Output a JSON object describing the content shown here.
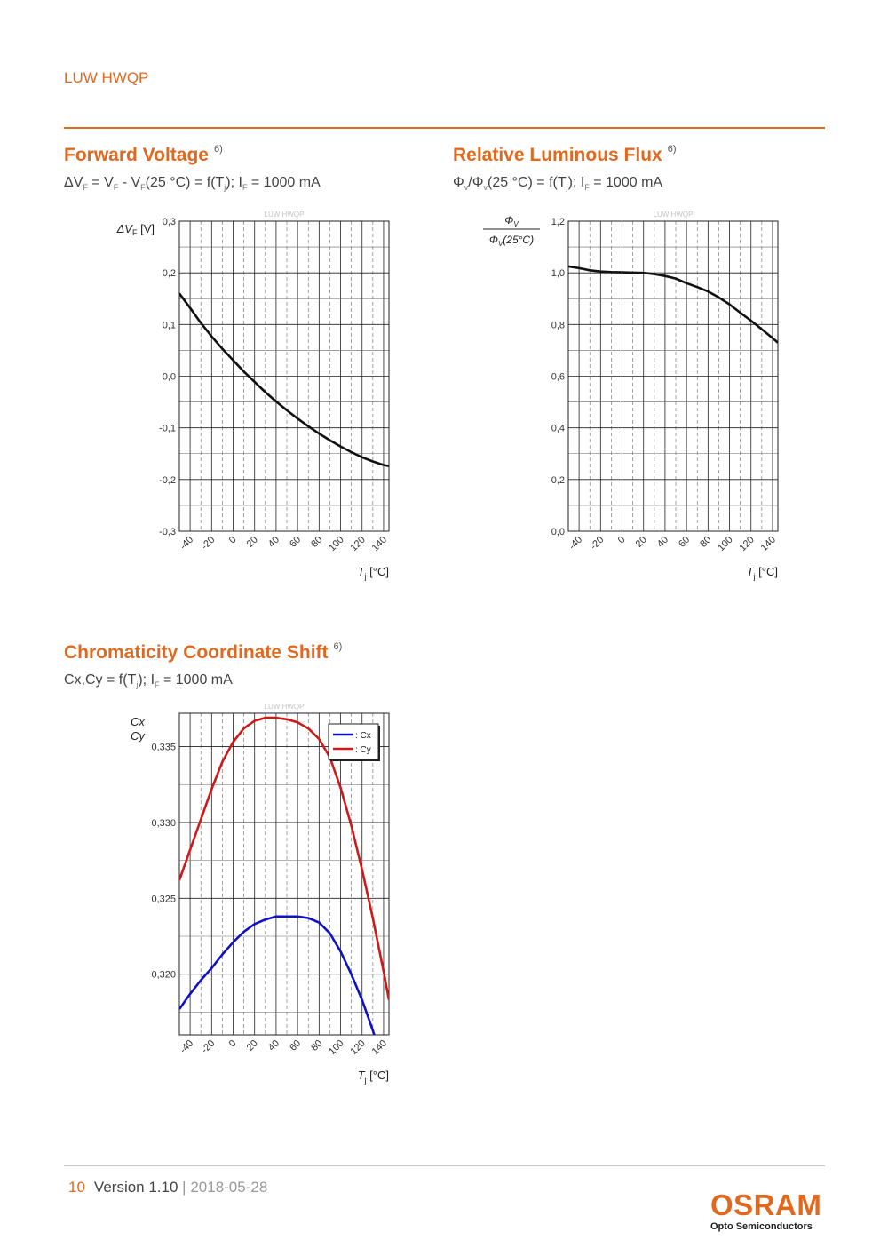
{
  "header": {
    "product": "LUW HWQP"
  },
  "sections": {
    "forward_voltage": {
      "title": "Forward Voltage",
      "note": "6)",
      "subtitle": {
        "dv": "ΔV",
        "f1": "F",
        "eq1": " = V",
        "f2": "F",
        "minus": " - V",
        "f3": "F",
        "mid": "(25 °C) = f(T",
        "j": "j",
        "semi": "); I",
        "f4": "F",
        "end": " = 1000 mA"
      }
    },
    "luminous_flux": {
      "title": "Relative Luminous Flux",
      "note": "6)",
      "subtitle": {
        "phi1": "Φ",
        "v1": "v",
        "slash": "/Φ",
        "v2": "v",
        "mid": "(25 °C) = f(T",
        "j": "j",
        "semi": "); I",
        "f": "F",
        "end": " = 1000 mA"
      }
    },
    "chromaticity": {
      "title": "Chromaticity Coordinate Shift",
      "note": "6)",
      "subtitle": {
        "start": "Cx,Cy = f(T",
        "j": "j",
        "semi": "); I",
        "f": "F",
        "end": " = 1000 mA"
      }
    }
  },
  "footer": {
    "page": "10",
    "version": "Version 1.10",
    "separator": "|",
    "date": "2018-05-28"
  },
  "logo": {
    "brand": "OSRAM",
    "tagline": "Opto Semiconductors"
  },
  "colors": {
    "accent": "#e0691f",
    "cx_series": "#1010c8",
    "cy_series": "#d01818"
  },
  "chart_data": [
    {
      "type": "line",
      "watermark": "LUW HWQP",
      "ylabel": "ΔVF [V]",
      "xlabel": "Tj [°C]",
      "xlim": [
        -50,
        145
      ],
      "ylim": [
        -0.3,
        0.3
      ],
      "x_ticks": [
        -40,
        -20,
        0,
        20,
        40,
        60,
        80,
        100,
        120,
        140
      ],
      "y_ticks": [
        -0.3,
        -0.2,
        -0.1,
        0.0,
        0.1,
        0.2,
        0.3
      ],
      "y_tick_labels": [
        "-0,3",
        "-0,2",
        "-0,1",
        "0,0",
        "0,1",
        "0,2",
        "0,3"
      ],
      "grid": true,
      "series": [
        {
          "x": [
            -50,
            -40,
            -30,
            -20,
            -10,
            0,
            10,
            20,
            30,
            40,
            50,
            60,
            70,
            80,
            90,
            100,
            110,
            120,
            130,
            140,
            145
          ],
          "values": [
            0.16,
            0.132,
            0.103,
            0.077,
            0.053,
            0.031,
            0.009,
            -0.011,
            -0.031,
            -0.049,
            -0.066,
            -0.082,
            -0.097,
            -0.111,
            -0.124,
            -0.136,
            -0.147,
            -0.157,
            -0.165,
            -0.172,
            -0.174
          ]
        }
      ]
    },
    {
      "type": "line",
      "watermark": "LUW HWQP",
      "ylabel_numerator": "Φv",
      "ylabel_denominator": "Φv(25°C)",
      "xlabel": "Tj [°C]",
      "xlim": [
        -50,
        145
      ],
      "ylim": [
        0.0,
        1.2
      ],
      "x_ticks": [
        -40,
        -20,
        0,
        20,
        40,
        60,
        80,
        100,
        120,
        140
      ],
      "y_ticks": [
        0.0,
        0.2,
        0.4,
        0.6,
        0.8,
        1.0,
        1.2
      ],
      "y_tick_labels": [
        "0,0",
        "0,2",
        "0,4",
        "0,6",
        "0,8",
        "1,0",
        "1,2"
      ],
      "grid": true,
      "series": [
        {
          "x": [
            -50,
            -40,
            -30,
            -20,
            -10,
            0,
            10,
            20,
            30,
            40,
            50,
            60,
            70,
            80,
            90,
            100,
            110,
            120,
            130,
            140,
            145
          ],
          "values": [
            1.025,
            1.018,
            1.01,
            1.005,
            1.003,
            1.002,
            1.001,
            1.0,
            0.995,
            0.988,
            0.978,
            0.96,
            0.945,
            0.928,
            0.905,
            0.878,
            0.846,
            0.815,
            0.782,
            0.748,
            0.73
          ]
        }
      ]
    },
    {
      "type": "line",
      "watermark": "LUW HWQP",
      "ylabel": [
        "Cx",
        "Cy"
      ],
      "xlabel": "Tj [°C]",
      "xlim": [
        -50,
        145
      ],
      "ylim": [
        0.316,
        0.3372
      ],
      "x_ticks": [
        -40,
        -20,
        0,
        20,
        40,
        60,
        80,
        100,
        120,
        140
      ],
      "y_ticks": [
        0.32,
        0.325,
        0.33,
        0.335
      ],
      "y_tick_labels": [
        "0,320",
        "0,325",
        "0,330",
        "0,335"
      ],
      "grid": true,
      "legend": "top-right",
      "series": [
        {
          "name": ": Cx",
          "x": [
            -50,
            -40,
            -30,
            -20,
            -10,
            0,
            10,
            20,
            30,
            40,
            50,
            60,
            70,
            80,
            90,
            100,
            110,
            120,
            130,
            140,
            145
          ],
          "values": [
            0.3177,
            0.3187,
            0.3196,
            0.3204,
            0.3213,
            0.3221,
            0.3228,
            0.3233,
            0.3236,
            0.3238,
            0.3238,
            0.3238,
            0.3237,
            0.3234,
            0.3227,
            0.3215,
            0.32,
            0.3183,
            0.3163,
            0.314,
            0.3128
          ]
        },
        {
          "name": ": Cy",
          "x": [
            -50,
            -40,
            -30,
            -20,
            -10,
            0,
            10,
            20,
            30,
            40,
            50,
            60,
            70,
            80,
            90,
            100,
            110,
            120,
            130,
            140,
            145
          ],
          "values": [
            0.3262,
            0.3282,
            0.3302,
            0.3322,
            0.334,
            0.3353,
            0.3362,
            0.3367,
            0.3369,
            0.3369,
            0.3368,
            0.3366,
            0.3362,
            0.3355,
            0.3343,
            0.3323,
            0.3298,
            0.3269,
            0.3237,
            0.3202,
            0.3183
          ]
        }
      ]
    }
  ]
}
